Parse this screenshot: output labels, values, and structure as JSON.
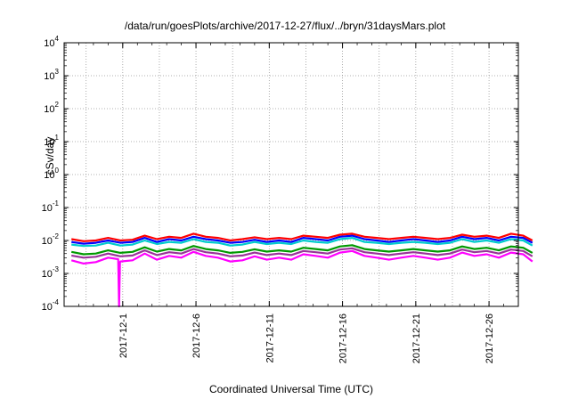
{
  "chart_data": {
    "type": "line",
    "title": "/data/run/goesPlots/archive/2017-12-27/flux/../bryn/31daysMars.plot",
    "xlabel": "Coordinated Universal Time (UTC)",
    "ylabel": "cSv/day",
    "y_scale": "log",
    "ylim": [
      0.0001,
      10000
    ],
    "xlim": [
      "2017-11-27",
      "2017-12-28"
    ],
    "grid": true,
    "y_ticks": [
      {
        "value": 0.0001,
        "base": "10",
        "exp": "-4"
      },
      {
        "value": 0.001,
        "base": "10",
        "exp": "-3"
      },
      {
        "value": 0.01,
        "base": "10",
        "exp": "-2"
      },
      {
        "value": 0.1,
        "base": "10",
        "exp": "-1"
      },
      {
        "value": 1,
        "base": "10",
        "exp": "0"
      },
      {
        "value": 10,
        "base": "10",
        "exp": "1"
      },
      {
        "value": 100,
        "base": "10",
        "exp": "2"
      },
      {
        "value": 1000,
        "base": "10",
        "exp": "3"
      },
      {
        "value": 10000,
        "base": "10",
        "exp": "4"
      }
    ],
    "x_ticks": [
      "2017-12-1",
      "2017-12-6",
      "2017-12-11",
      "2017-12-16",
      "2017-12-21",
      "2017-12-26"
    ],
    "x_tick_dates": [
      "2017-12-01",
      "2017-12-06",
      "2017-12-11",
      "2017-12-16",
      "2017-12-21",
      "2017-12-26"
    ],
    "series": [
      {
        "color": "#ff0000",
        "values": [
          0.011,
          0.0095,
          0.01,
          0.012,
          0.01,
          0.0105,
          0.014,
          0.011,
          0.013,
          0.012,
          0.016,
          0.013,
          0.012,
          0.01,
          0.011,
          0.0125,
          0.011,
          0.012,
          0.011,
          0.014,
          0.013,
          0.012,
          0.015,
          0.016,
          0.013,
          0.012,
          0.011,
          0.012,
          0.013,
          0.012,
          0.011,
          0.012,
          0.015,
          0.013,
          0.014,
          0.012,
          0.016,
          0.014,
          0.01
        ]
      },
      {
        "color": "#0000ff",
        "values": [
          0.009,
          0.008,
          0.0085,
          0.01,
          0.0085,
          0.009,
          0.012,
          0.009,
          0.011,
          0.01,
          0.013,
          0.011,
          0.01,
          0.0085,
          0.009,
          0.0105,
          0.009,
          0.01,
          0.009,
          0.012,
          0.011,
          0.01,
          0.013,
          0.014,
          0.011,
          0.01,
          0.009,
          0.01,
          0.011,
          0.01,
          0.009,
          0.01,
          0.013,
          0.011,
          0.012,
          0.01,
          0.013,
          0.012,
          0.0085
        ]
      },
      {
        "color": "#00cccc",
        "values": [
          0.0075,
          0.0068,
          0.007,
          0.0085,
          0.007,
          0.0075,
          0.01,
          0.0078,
          0.009,
          0.0085,
          0.011,
          0.009,
          0.0085,
          0.007,
          0.0075,
          0.009,
          0.0078,
          0.0085,
          0.0078,
          0.01,
          0.009,
          0.0085,
          0.011,
          0.012,
          0.009,
          0.0085,
          0.0078,
          0.0085,
          0.009,
          0.0085,
          0.0078,
          0.0085,
          0.011,
          0.009,
          0.01,
          0.0085,
          0.011,
          0.01,
          0.007
        ]
      },
      {
        "color": "#009900",
        "values": [
          0.0045,
          0.0038,
          0.004,
          0.005,
          0.0042,
          0.0045,
          0.0062,
          0.0046,
          0.0055,
          0.005,
          0.0068,
          0.0055,
          0.005,
          0.0042,
          0.0045,
          0.0054,
          0.0046,
          0.005,
          0.0046,
          0.006,
          0.0055,
          0.005,
          0.0066,
          0.0072,
          0.0055,
          0.005,
          0.0046,
          0.005,
          0.0055,
          0.005,
          0.0046,
          0.005,
          0.0066,
          0.0055,
          0.006,
          0.005,
          0.0066,
          0.006,
          0.0042
        ]
      },
      {
        "color": "#993399",
        "values": [
          0.0035,
          0.003,
          0.0032,
          0.004,
          0.0033,
          0.0035,
          0.005,
          0.0036,
          0.0044,
          0.004,
          0.0055,
          0.0044,
          0.004,
          0.0033,
          0.0035,
          0.0043,
          0.0036,
          0.004,
          0.0036,
          0.0048,
          0.0044,
          0.004,
          0.0053,
          0.0058,
          0.0044,
          0.004,
          0.0036,
          0.004,
          0.0044,
          0.004,
          0.0036,
          0.004,
          0.0053,
          0.0044,
          0.0048,
          0.004,
          0.0053,
          0.0048,
          0.0033
        ]
      },
      {
        "color": "#ff00ff",
        "values": [
          0.0025,
          0.002,
          0.0022,
          0.003,
          0.0023,
          0.0025,
          0.004,
          0.0026,
          0.0034,
          0.003,
          0.0045,
          0.0034,
          0.003,
          0.0023,
          0.0025,
          0.0033,
          0.0026,
          0.003,
          0.0026,
          0.0038,
          0.0034,
          0.003,
          0.0043,
          0.0048,
          0.0034,
          0.003,
          0.0026,
          0.003,
          0.0034,
          0.003,
          0.0026,
          0.003,
          0.0043,
          0.0034,
          0.0038,
          0.003,
          0.0043,
          0.0038,
          0.0023
        ]
      }
    ],
    "x_values": [
      "2017-11-27T12:00",
      "2017-11-28T08:00",
      "2017-11-29T04:00",
      "2017-11-30T00:00",
      "2017-11-30T20:00",
      "2017-12-01T16:00",
      "2017-12-02T12:00",
      "2017-12-03T08:00",
      "2017-12-04T04:00",
      "2017-12-05T00:00",
      "2017-12-05T20:00",
      "2017-12-06T16:00",
      "2017-12-07T12:00",
      "2017-12-08T08:00",
      "2017-12-09T04:00",
      "2017-12-10T00:00",
      "2017-12-10T20:00",
      "2017-12-11T16:00",
      "2017-12-12T12:00",
      "2017-12-13T08:00",
      "2017-12-14T04:00",
      "2017-12-15T00:00",
      "2017-12-15T20:00",
      "2017-12-16T16:00",
      "2017-12-17T12:00",
      "2017-12-18T08:00",
      "2017-12-19T04:00",
      "2017-12-20T00:00",
      "2017-12-20T20:00",
      "2017-12-21T16:00",
      "2017-12-22T12:00",
      "2017-12-23T08:00",
      "2017-12-24T04:00",
      "2017-12-25T00:00",
      "2017-12-25T20:00",
      "2017-12-26T16:00",
      "2017-12-27T12:00",
      "2017-12-28T08:00",
      "2017-12-28T23:00"
    ],
    "annotations": [
      {
        "series_color": "#ff00ff",
        "x": "2017-11-30T18:00",
        "y": 0.0001,
        "type": "dip"
      }
    ]
  }
}
